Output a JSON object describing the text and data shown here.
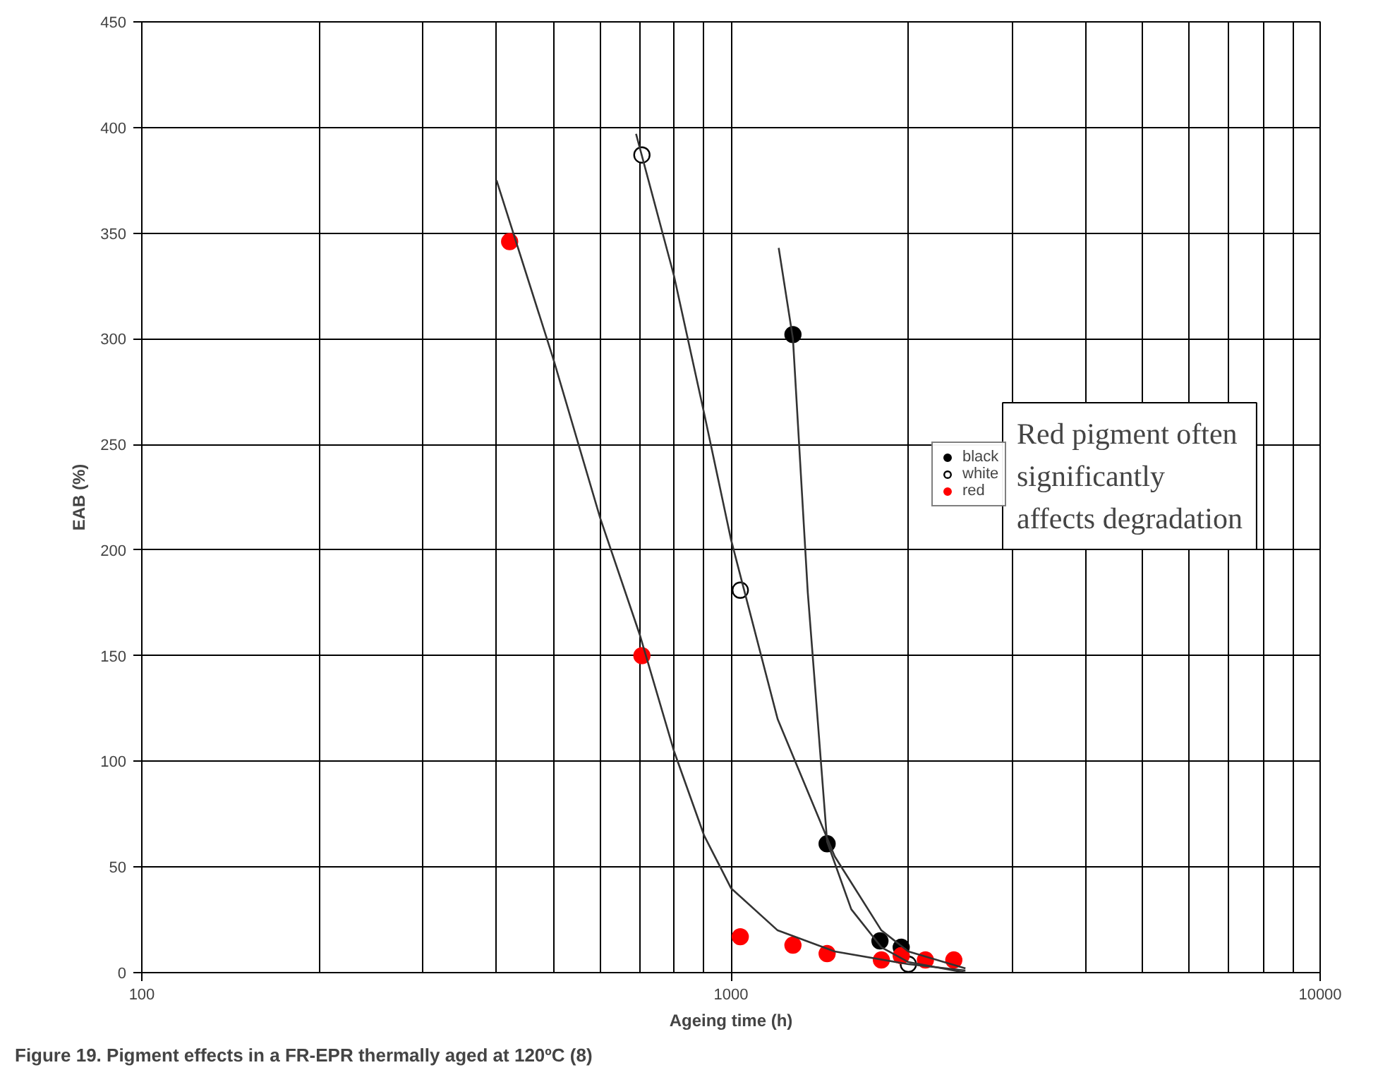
{
  "chart_data": {
    "type": "scatter",
    "xlabel": "Ageing time (h)",
    "ylabel": "EAB (%)",
    "log": "x",
    "xlim": [
      100,
      10000
    ],
    "xticks": [
      100,
      1000,
      10000
    ],
    "ylim": [
      0,
      450
    ],
    "yticks": [
      0,
      50,
      100,
      150,
      200,
      250,
      300,
      350,
      400,
      450
    ],
    "grid": true,
    "legend": "right",
    "marker": "circle",
    "series": [
      {
        "name": "black",
        "color": "#000000",
        "x": [
          1274,
          1456,
          1790,
          1945
        ],
        "values": [
          302,
          61,
          15,
          12
        ]
      },
      {
        "name": "white",
        "color": "#ffffff",
        "x": [
          706,
          1037,
          2000
        ],
        "values": [
          387,
          181,
          4
        ]
      },
      {
        "name": "red",
        "color": "#ff0000",
        "x": [
          421,
          706,
          1037,
          1274,
          1456,
          1800,
          1945,
          2138,
          2389
        ],
        "values": [
          346,
          150,
          17,
          13,
          9,
          6,
          8,
          6,
          6
        ]
      },
      {
        "type": "line",
        "marker": "none",
        "color": "#333333",
        "x": [
          400,
          500,
          600,
          700,
          800,
          900,
          1000,
          1200,
          1500,
          2000,
          2500
        ],
        "values": [
          375,
          290,
          215,
          160,
          105,
          65,
          40,
          20,
          10,
          4,
          1
        ]
      },
      {
        "type": "line",
        "marker": "none",
        "color": "#333333",
        "x": [
          690,
          800,
          900,
          1000,
          1200,
          1500,
          1800,
          2000,
          2500
        ],
        "values": [
          397,
          330,
          265,
          205,
          120,
          55,
          20,
          10,
          2
        ]
      },
      {
        "type": "line",
        "marker": "none",
        "color": "#333333",
        "x": [
          1205,
          1274,
          1350,
          1456,
          1600,
          1800,
          2000,
          2500
        ],
        "values": [
          343,
          300,
          180,
          62,
          30,
          12,
          5,
          0
        ]
      }
    ],
    "annotations": [
      "Red pigment often significantly affects degradation",
      "Figure 19. Pigment effects in a FR-EPR thermally aged at 120ºC (8)"
    ]
  }
}
